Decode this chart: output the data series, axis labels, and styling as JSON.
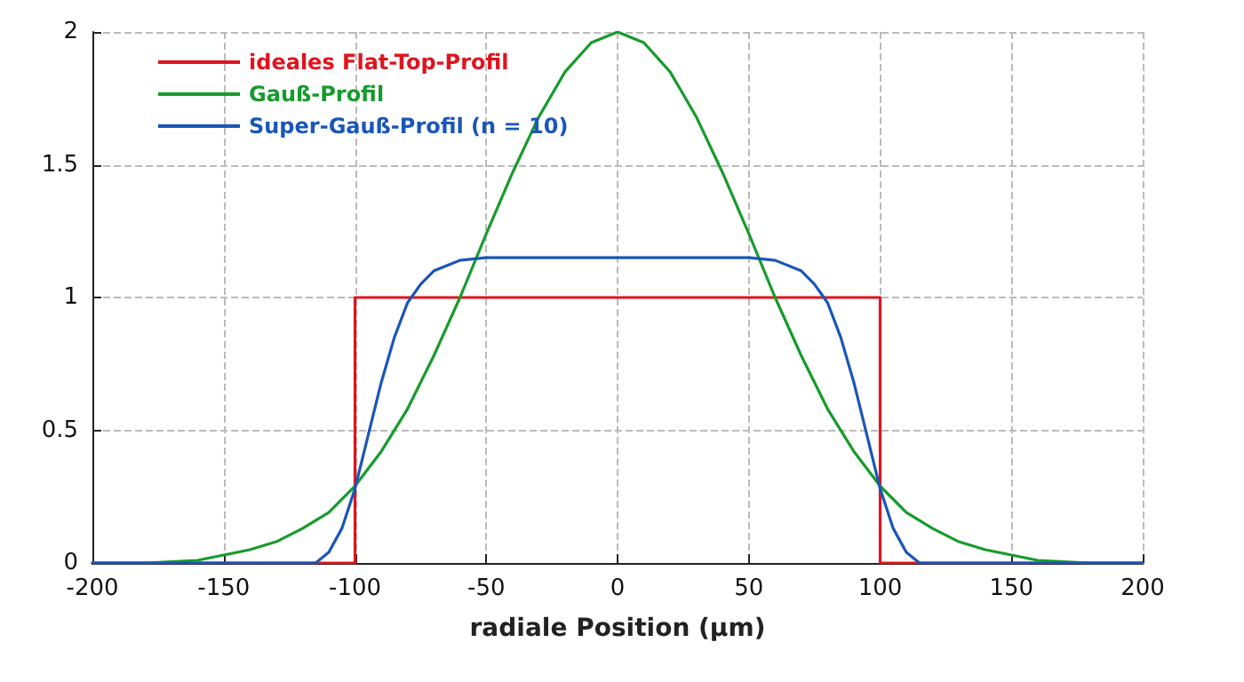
{
  "chart_data": {
    "type": "line",
    "xlabel": "radiale Position (µm)",
    "xlim": [
      -200,
      200
    ],
    "xticks": [
      -200,
      -150,
      -100,
      -50,
      0,
      50,
      100,
      150,
      200
    ],
    "ylim": [
      0,
      2
    ],
    "yticks": [
      0,
      0.5,
      1,
      1.5,
      2
    ],
    "grid": true,
    "legend": "top left",
    "marker": "none",
    "line_style": "solid",
    "series": [
      {
        "name": "ideales Flat-Top-Profil",
        "color": "#e0141e",
        "x": [
          -200,
          -100,
          -100,
          100,
          100,
          200
        ],
        "values": [
          0,
          0,
          1,
          1,
          0,
          0
        ]
      },
      {
        "name": "Gauß-Profil",
        "color": "#169b2c",
        "x": [
          -200,
          -180,
          -160,
          -150,
          -140,
          -130,
          -120,
          -110,
          -100,
          -90,
          -80,
          -70,
          -60,
          -50,
          -40,
          -30,
          -20,
          -10,
          0,
          10,
          20,
          30,
          40,
          50,
          60,
          70,
          80,
          90,
          100,
          110,
          120,
          130,
          140,
          150,
          160,
          180,
          200
        ],
        "values": [
          0,
          0,
          0.01,
          0.03,
          0.05,
          0.08,
          0.13,
          0.19,
          0.29,
          0.42,
          0.58,
          0.78,
          1,
          1.24,
          1.47,
          1.68,
          1.85,
          1.96,
          2,
          1.96,
          1.85,
          1.68,
          1.47,
          1.24,
          1,
          0.78,
          0.58,
          0.42,
          0.29,
          0.19,
          0.13,
          0.08,
          0.05,
          0.03,
          0.01,
          0,
          0
        ]
      },
      {
        "name": "Super-Gauß-Profil (n = 10)",
        "color": "#1a56b8",
        "x": [
          -200,
          -115,
          -110,
          -105,
          -100,
          -95,
          -90,
          -85,
          -80,
          -75,
          -70,
          -60,
          -50,
          0,
          50,
          60,
          70,
          75,
          80,
          85,
          90,
          95,
          100,
          105,
          110,
          115,
          200
        ],
        "values": [
          0,
          0,
          0.04,
          0.13,
          0.28,
          0.48,
          0.68,
          0.85,
          0.98,
          1.05,
          1.1,
          1.14,
          1.15,
          1.15,
          1.15,
          1.14,
          1.1,
          1.05,
          0.98,
          0.85,
          0.68,
          0.48,
          0.28,
          0.13,
          0.04,
          0,
          0
        ]
      }
    ]
  }
}
